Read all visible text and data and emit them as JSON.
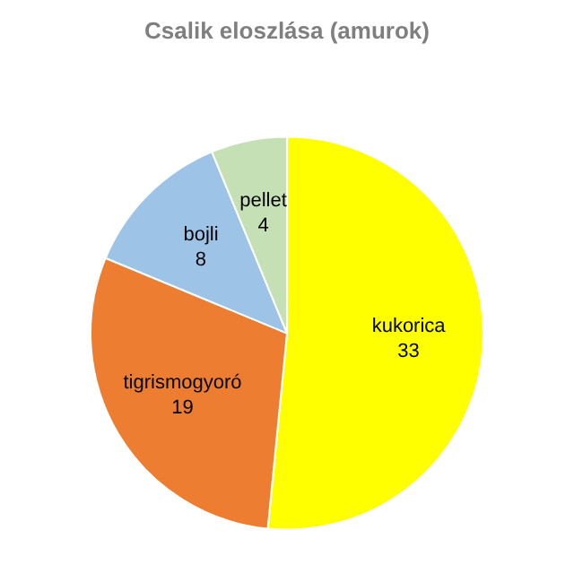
{
  "chart_data": {
    "type": "pie",
    "title": "Csalik eloszlása (amurok)",
    "categories": [
      "kukorica",
      "tigrismogyoró",
      "bojli",
      "pellet"
    ],
    "values": [
      33,
      19,
      8,
      4
    ],
    "colors": [
      "#ffff00",
      "#ed7d31",
      "#9dc3e6",
      "#c5e0b4"
    ],
    "data_labels": true,
    "legend": false
  }
}
